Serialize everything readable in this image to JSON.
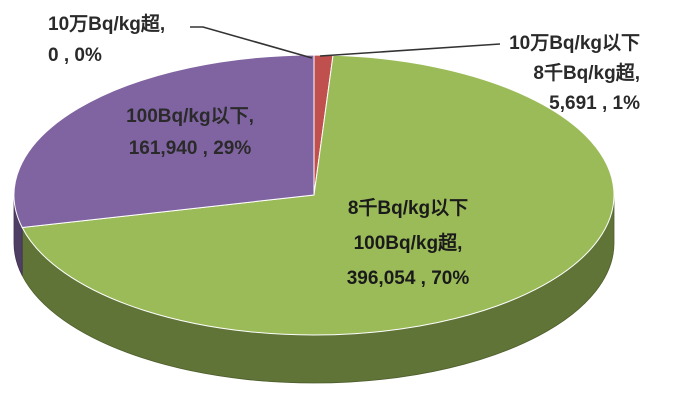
{
  "chart_data": {
    "type": "pie",
    "three_d": true,
    "slices": [
      {
        "label_lines": [
          "8千Bq/kg以下",
          "100Bq/kg超,"
        ],
        "value": 396054,
        "value_text": "396,054",
        "percent": 70,
        "percent_text": "70%",
        "color": "#9bbb59"
      },
      {
        "label_lines": [
          "100Bq/kg以下,"
        ],
        "value": 161940,
        "value_text": "161,940",
        "percent": 29,
        "percent_text": "29%",
        "color": "#8064a2"
      },
      {
        "label_lines": [
          "10万Bq/kg超,"
        ],
        "value": 0,
        "value_text": "0",
        "percent": 0,
        "percent_text": "0%",
        "color": "#4f81bd"
      },
      {
        "label_lines": [
          "10万Bq/kg以下",
          "8千Bq/kg超,"
        ],
        "value": 5691,
        "value_text": "5,691",
        "percent": 1,
        "percent_text": "1%",
        "color": "#c0504d"
      }
    ],
    "sep": " , "
  }
}
